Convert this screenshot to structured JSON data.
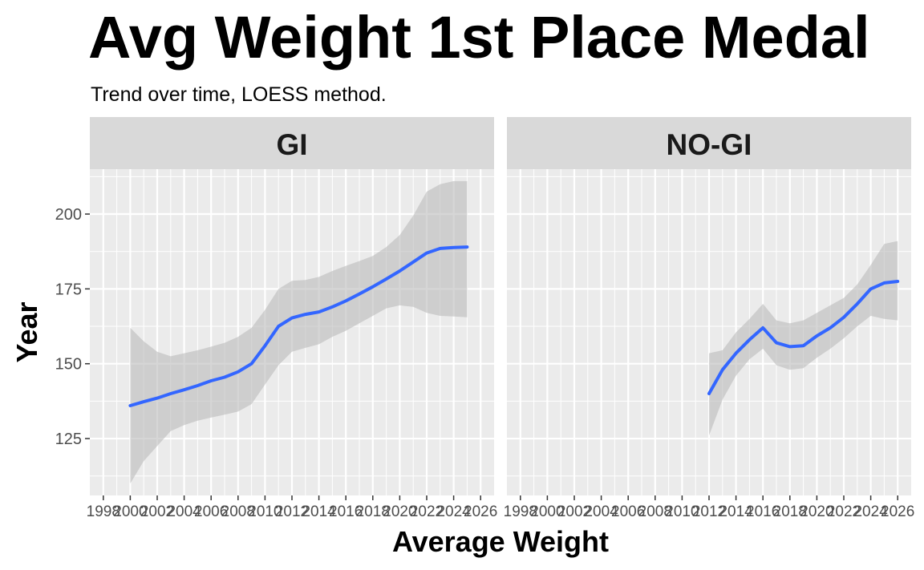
{
  "chart": {
    "title": "Avg Weight 1st Place Medal",
    "subtitle": "Trend over time, LOESS method."
  },
  "chart_data": {
    "type": "line",
    "title": "Avg Weight 1st Place Medal",
    "subtitle": "Trend over time, LOESS method.",
    "xlabel": "Average Weight",
    "ylabel": "Year",
    "x_ticks": [
      1998,
      2000,
      2002,
      2004,
      2006,
      2008,
      2010,
      2012,
      2014,
      2016,
      2018,
      2020,
      2022,
      2024,
      2026
    ],
    "y_ticks": [
      125,
      150,
      175,
      200
    ],
    "xlim": [
      1997,
      2027
    ],
    "ylim": [
      106,
      215
    ],
    "grid": true,
    "colors": {
      "line": "#3366FF",
      "ribbon": "#BBBBBB",
      "panel": "#EBEBEB",
      "strip": "#D9D9D9"
    },
    "panels": [
      {
        "label": "GI",
        "x": [
          2000,
          2001,
          2002,
          2003,
          2004,
          2005,
          2006,
          2007,
          2008,
          2009,
          2010,
          2011,
          2012,
          2013,
          2014,
          2015,
          2016,
          2017,
          2018,
          2019,
          2020,
          2021,
          2022,
          2023,
          2024,
          2025
        ],
        "fit": [
          136,
          137.3,
          138.5,
          140,
          141.3,
          142.7,
          144.3,
          145.5,
          147.3,
          150,
          156,
          162.5,
          165.3,
          166.5,
          167.3,
          169,
          171,
          173.3,
          175.7,
          178.3,
          181,
          184,
          187,
          188.5,
          188.8,
          189
        ],
        "lower": [
          110,
          117.5,
          122.5,
          127.5,
          129.5,
          131,
          132,
          133,
          134,
          136.5,
          143,
          149.5,
          154,
          155.3,
          156.5,
          159,
          161,
          163.5,
          166,
          168.5,
          169.5,
          169,
          167,
          166,
          165.8,
          165.5
        ],
        "upper": [
          162,
          157.5,
          154,
          152.5,
          153.5,
          154.5,
          155.7,
          157,
          159,
          162,
          168,
          175,
          177.7,
          178,
          179,
          181,
          182.7,
          184.3,
          186,
          189,
          193,
          199.5,
          207.5,
          210,
          211,
          211
        ]
      },
      {
        "label": "NO-GI",
        "x": [
          2012,
          2013,
          2014,
          2015,
          2016,
          2017,
          2018,
          2019,
          2020,
          2021,
          2022,
          2023,
          2024,
          2025,
          2026
        ],
        "fit": [
          140,
          148,
          153.5,
          158,
          162,
          157,
          155.7,
          156,
          159.3,
          162,
          165.5,
          170,
          175,
          177,
          177.5
        ],
        "lower": [
          126,
          138,
          146,
          151.5,
          155,
          149.5,
          148,
          148.5,
          152,
          155,
          158.5,
          162.5,
          166,
          165,
          164.5
        ],
        "upper": [
          153.5,
          154.5,
          160.5,
          165,
          170,
          164.5,
          163.5,
          164.5,
          167,
          169.5,
          172,
          176.5,
          183,
          190,
          191
        ]
      }
    ]
  }
}
